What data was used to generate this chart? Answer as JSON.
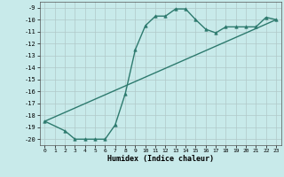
{
  "xlabel": "Humidex (Indice chaleur)",
  "bg_color": "#c8eaea",
  "grid_color": "#b0c8c8",
  "line_color": "#2d7a6e",
  "xlim": [
    -0.5,
    23.5
  ],
  "ylim": [
    -20.5,
    -8.5
  ],
  "yticks": [
    -9,
    -10,
    -11,
    -12,
    -13,
    -14,
    -15,
    -16,
    -17,
    -18,
    -19,
    -20
  ],
  "xticks": [
    0,
    1,
    2,
    3,
    4,
    5,
    6,
    7,
    8,
    9,
    10,
    11,
    12,
    13,
    14,
    15,
    16,
    17,
    18,
    19,
    20,
    21,
    22,
    23
  ],
  "line1_x": [
    0,
    2,
    3,
    4,
    5,
    6,
    7,
    8,
    9,
    10,
    11,
    12,
    13,
    14,
    15,
    16,
    17,
    18,
    19,
    20,
    21,
    22,
    23
  ],
  "line1_y": [
    -18.5,
    -19.3,
    -20.0,
    -20.0,
    -20.0,
    -20.0,
    -18.8,
    -16.2,
    -12.5,
    -10.5,
    -9.7,
    -9.7,
    -9.1,
    -9.1,
    -10.0,
    -10.8,
    -11.1,
    -10.6,
    -10.6,
    -10.6,
    -10.6,
    -9.8,
    -10.0
  ],
  "line2_x": [
    0,
    23
  ],
  "line2_y": [
    -18.5,
    -10.0
  ]
}
